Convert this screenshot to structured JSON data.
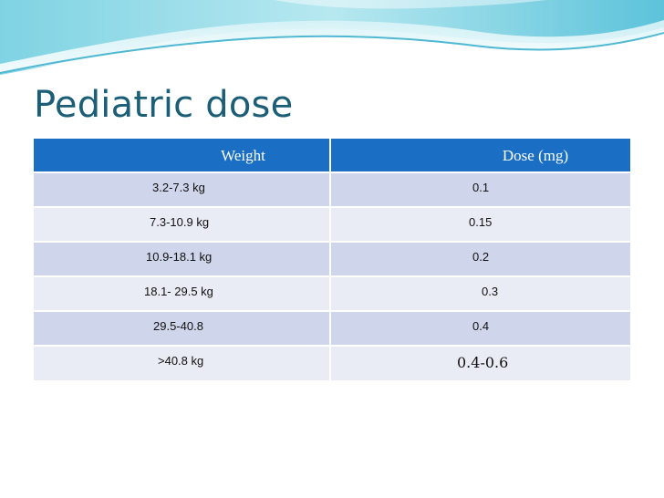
{
  "slide": {
    "title": "Pediatric dose"
  },
  "table": {
    "headers": {
      "weight": "Weight",
      "dose": "Dose (mg)"
    },
    "rows": [
      {
        "weight": "3.2-7.3 kg",
        "dose": "0.1"
      },
      {
        "weight": "7.3-10.9 kg",
        "dose": "0.15"
      },
      {
        "weight": "10.9-18.1 kg",
        "dose": "0.2"
      },
      {
        "weight": "18.1- 29.5 kg",
        "dose": "0.3"
      },
      {
        "weight": "29.5-40.8",
        "dose": "0.4"
      },
      {
        "weight": ">40.8 kg",
        "dose": "0.4-0.6"
      }
    ]
  },
  "theme": {
    "header_color": "#1a6fc4",
    "row_odd_color": "#cfd5ea",
    "row_even_color": "#e9ecf5",
    "title_color": "#1b5e75"
  }
}
